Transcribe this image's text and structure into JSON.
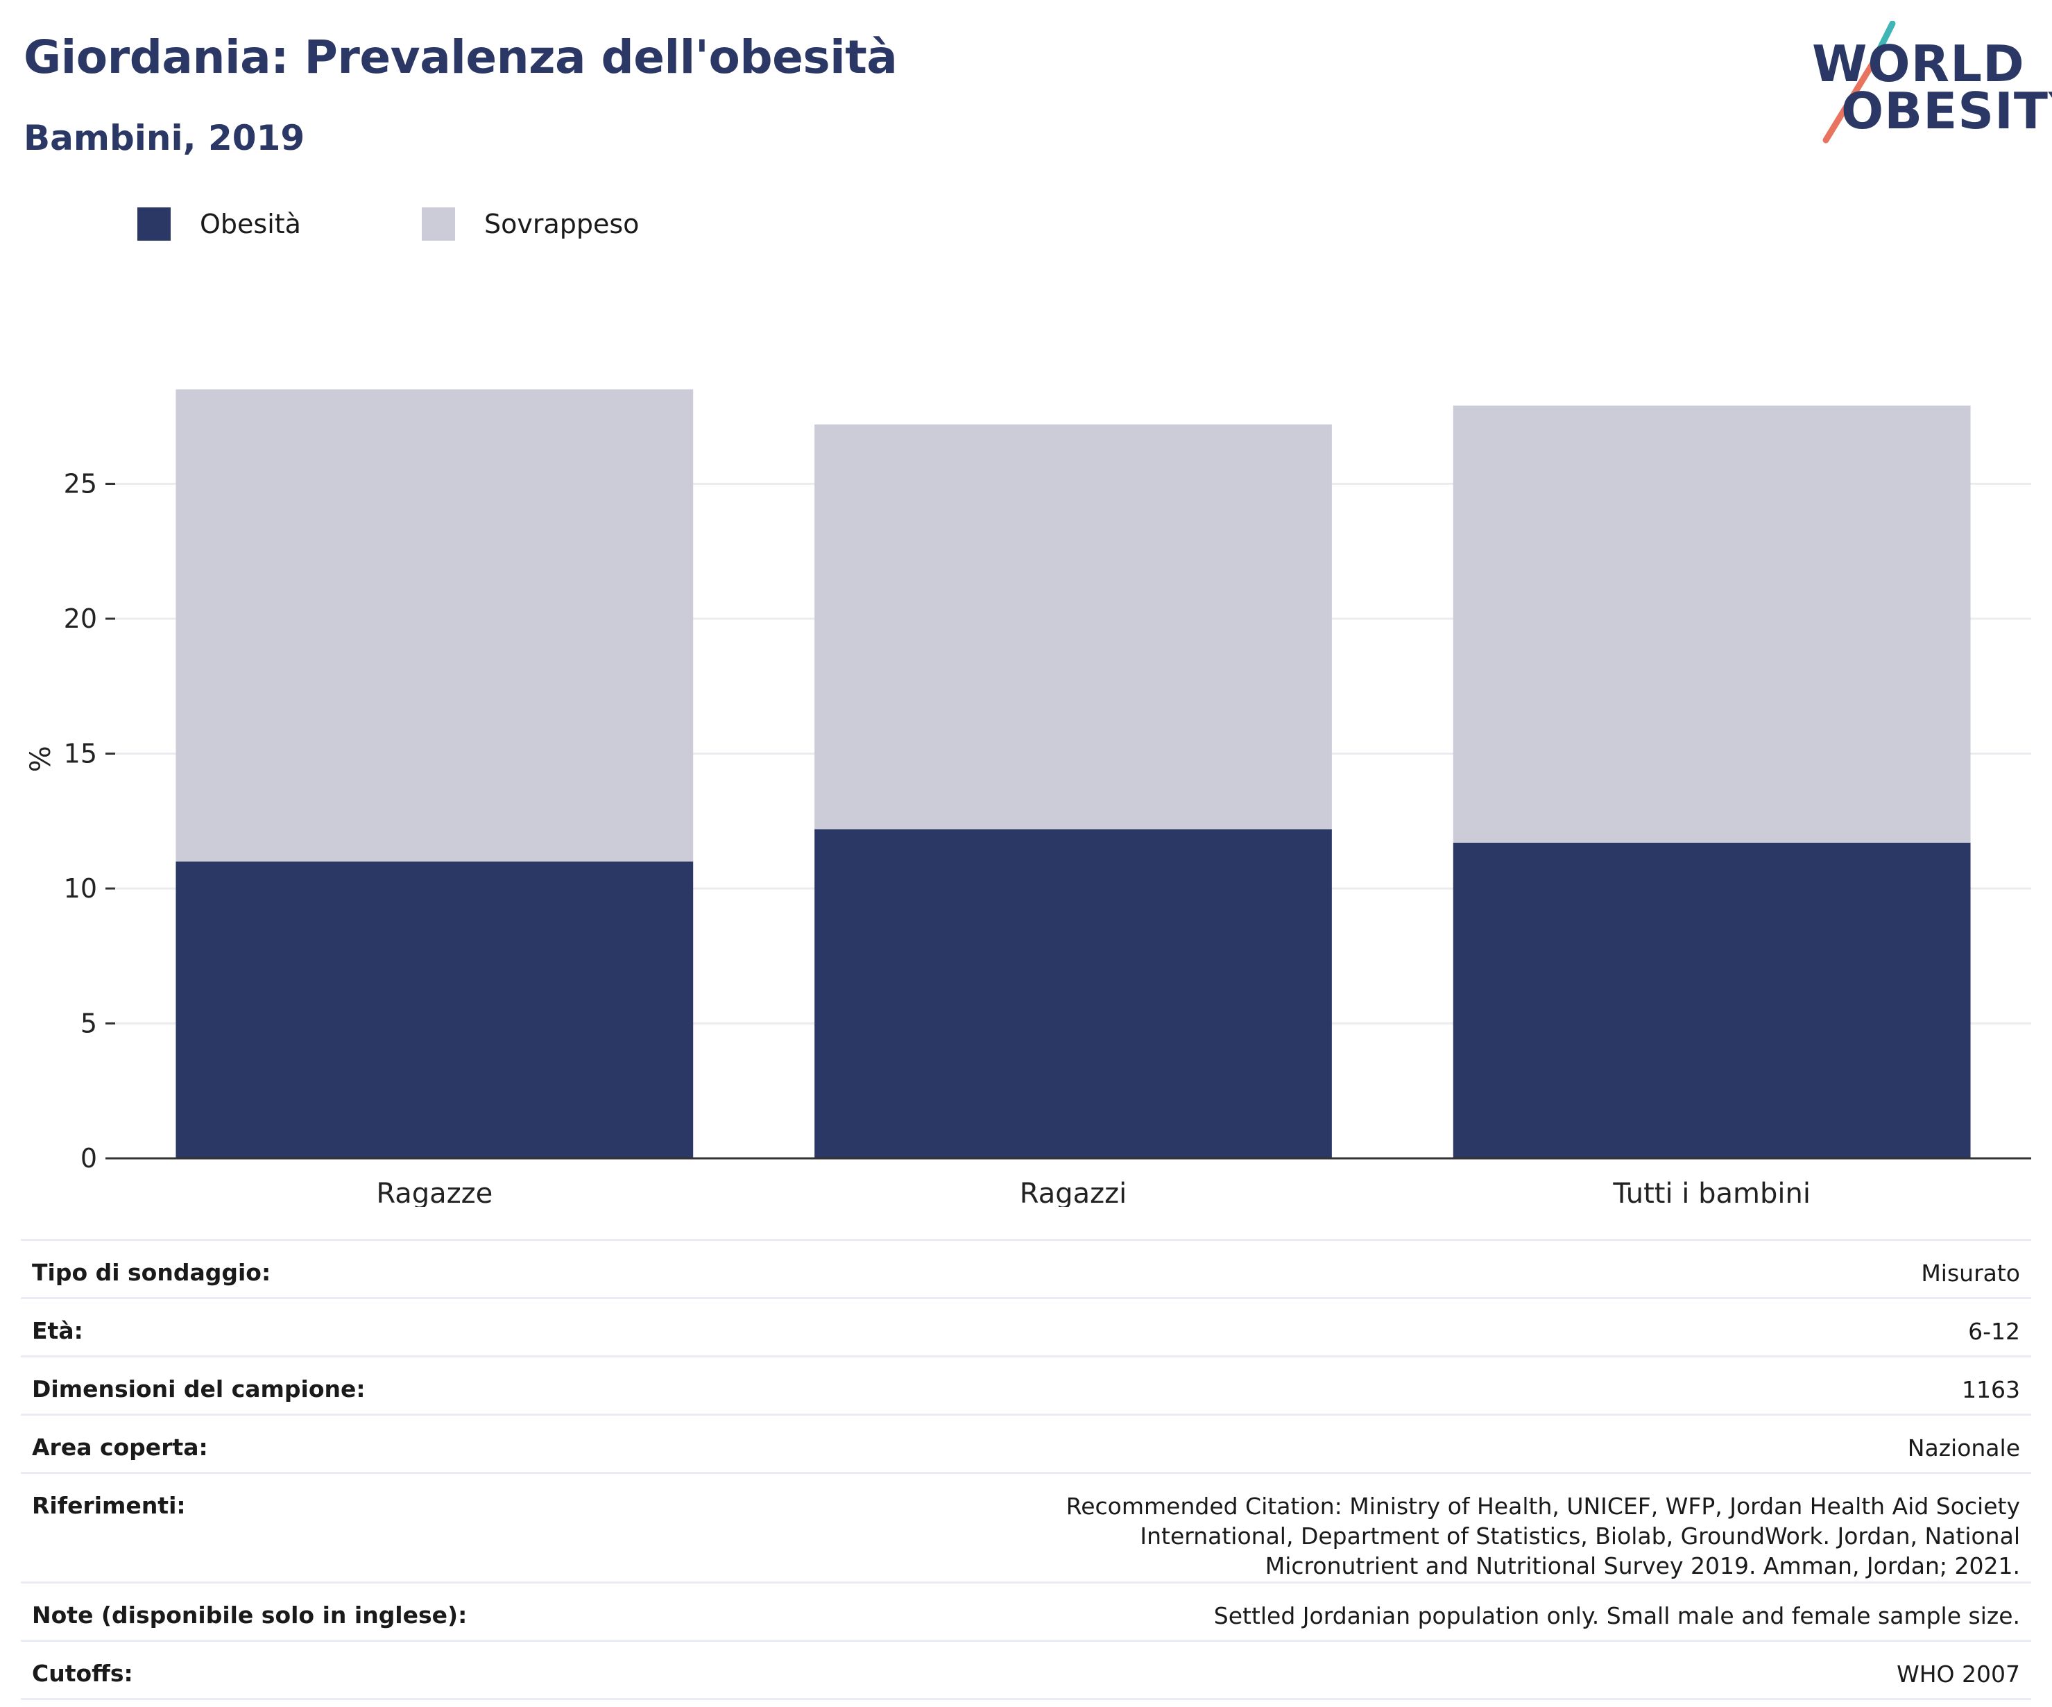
{
  "header": {
    "title": "Giordania: Prevalenza dell'obesità",
    "subtitle": "Bambini, 2019"
  },
  "logo": {
    "line1": "WORLD",
    "line2": "OBESITY"
  },
  "colors": {
    "obesity": "#2b3866",
    "overweight": "#cbccd8",
    "title": "#2b3866",
    "logo_teal": "#3fb6b5",
    "logo_coral": "#e8735e"
  },
  "legend": [
    {
      "label": "Obesità",
      "color": "#2b3866"
    },
    {
      "label": "Sovrappeso",
      "color": "#cbccd8"
    }
  ],
  "chart_data": {
    "type": "bar",
    "stacked": true,
    "categories": [
      "Ragazze",
      "Ragazzi",
      "Tutti i bambini"
    ],
    "series": [
      {
        "name": "Obesità",
        "values": [
          11.0,
          12.2,
          11.7
        ]
      },
      {
        "name": "Sovrappeso",
        "values": [
          17.5,
          15.0,
          16.2
        ]
      }
    ],
    "ylabel": "%",
    "ylim": [
      0,
      28.5
    ],
    "yticks": [
      0,
      5,
      10,
      15,
      20,
      25
    ],
    "grid": true,
    "legend_position": "top-left"
  },
  "info": [
    {
      "key": "Tipo di sondaggio:",
      "value": "Misurato"
    },
    {
      "key": "Età:",
      "value": "6-12"
    },
    {
      "key": "Dimensioni del campione:",
      "value": "1163"
    },
    {
      "key": "Area coperta:",
      "value": "Nazionale"
    },
    {
      "key": "Riferimenti:",
      "value": "Recommended Citation: Ministry of Health, UNICEF, WFP, Jordan Health Aid Society International, Department of Statistics, Biolab, GroundWork. Jordan, National Micronutrient and Nutritional Survey 2019. Amman, Jordan; 2021."
    },
    {
      "key": "Note (disponibile solo in inglese):",
      "value": "Settled Jordanian population only. Small male and female sample size."
    },
    {
      "key": "Cutoffs:",
      "value": "WHO 2007"
    }
  ]
}
